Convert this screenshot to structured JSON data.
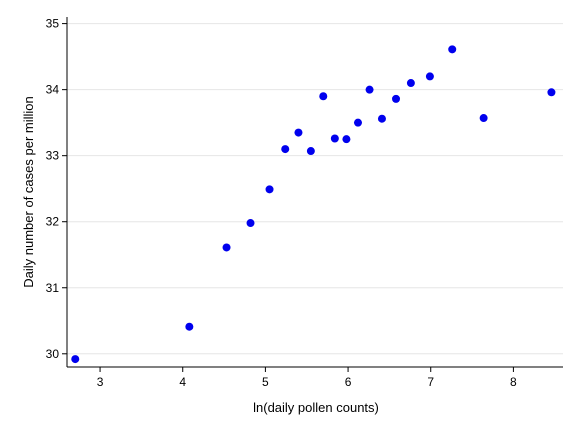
{
  "chart_data": {
    "type": "scatter",
    "title": "",
    "xlabel": "ln(daily pollen counts)",
    "ylabel": "Daily number of cases per million",
    "xlim": [
      2.6,
      8.6
    ],
    "ylim": [
      29.8,
      35.1
    ],
    "xticks": [
      3,
      4,
      5,
      6,
      7,
      8
    ],
    "yticks": [
      30,
      31,
      32,
      33,
      34,
      35
    ],
    "grid": "horizontal",
    "legend": "none",
    "marker_color": "#0000ee",
    "series": [
      {
        "points": [
          {
            "x": 2.7,
            "y": 29.92
          },
          {
            "x": 4.08,
            "y": 30.41
          },
          {
            "x": 4.53,
            "y": 31.61
          },
          {
            "x": 4.82,
            "y": 31.98
          },
          {
            "x": 5.05,
            "y": 32.49
          },
          {
            "x": 5.24,
            "y": 33.1
          },
          {
            "x": 5.4,
            "y": 33.35
          },
          {
            "x": 5.55,
            "y": 33.07
          },
          {
            "x": 5.7,
            "y": 33.9
          },
          {
            "x": 5.84,
            "y": 33.26
          },
          {
            "x": 5.98,
            "y": 33.25
          },
          {
            "x": 6.12,
            "y": 33.5
          },
          {
            "x": 6.26,
            "y": 34.0
          },
          {
            "x": 6.41,
            "y": 33.56
          },
          {
            "x": 6.58,
            "y": 33.86
          },
          {
            "x": 6.76,
            "y": 34.1
          },
          {
            "x": 6.99,
            "y": 34.2
          },
          {
            "x": 7.26,
            "y": 34.61
          },
          {
            "x": 7.64,
            "y": 33.57
          },
          {
            "x": 8.46,
            "y": 33.96
          }
        ]
      }
    ]
  }
}
